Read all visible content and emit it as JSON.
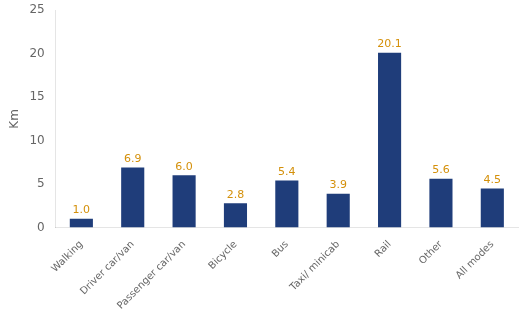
{
  "chart_data": {
    "type": "bar",
    "categories": [
      "Walking",
      "Driver car/van",
      "Passenger car/van",
      "Bicycle",
      "Bus",
      "Taxi/ minicab",
      "Rail",
      "Other",
      "All modes"
    ],
    "values": [
      1.0,
      6.9,
      6.0,
      2.8,
      5.4,
      3.9,
      20.1,
      5.6,
      4.5
    ],
    "value_labels": [
      "1.0",
      "6.9",
      "6.0",
      "2.8",
      "5.4",
      "3.9",
      "20.1",
      "5.6",
      "4.5"
    ],
    "data_labels": true,
    "color": "#1F3D7A",
    "ylabel": "Km",
    "ylim": [
      0,
      25
    ],
    "yticks": [
      0,
      5,
      10,
      15,
      20,
      25
    ],
    "grid": false
  }
}
